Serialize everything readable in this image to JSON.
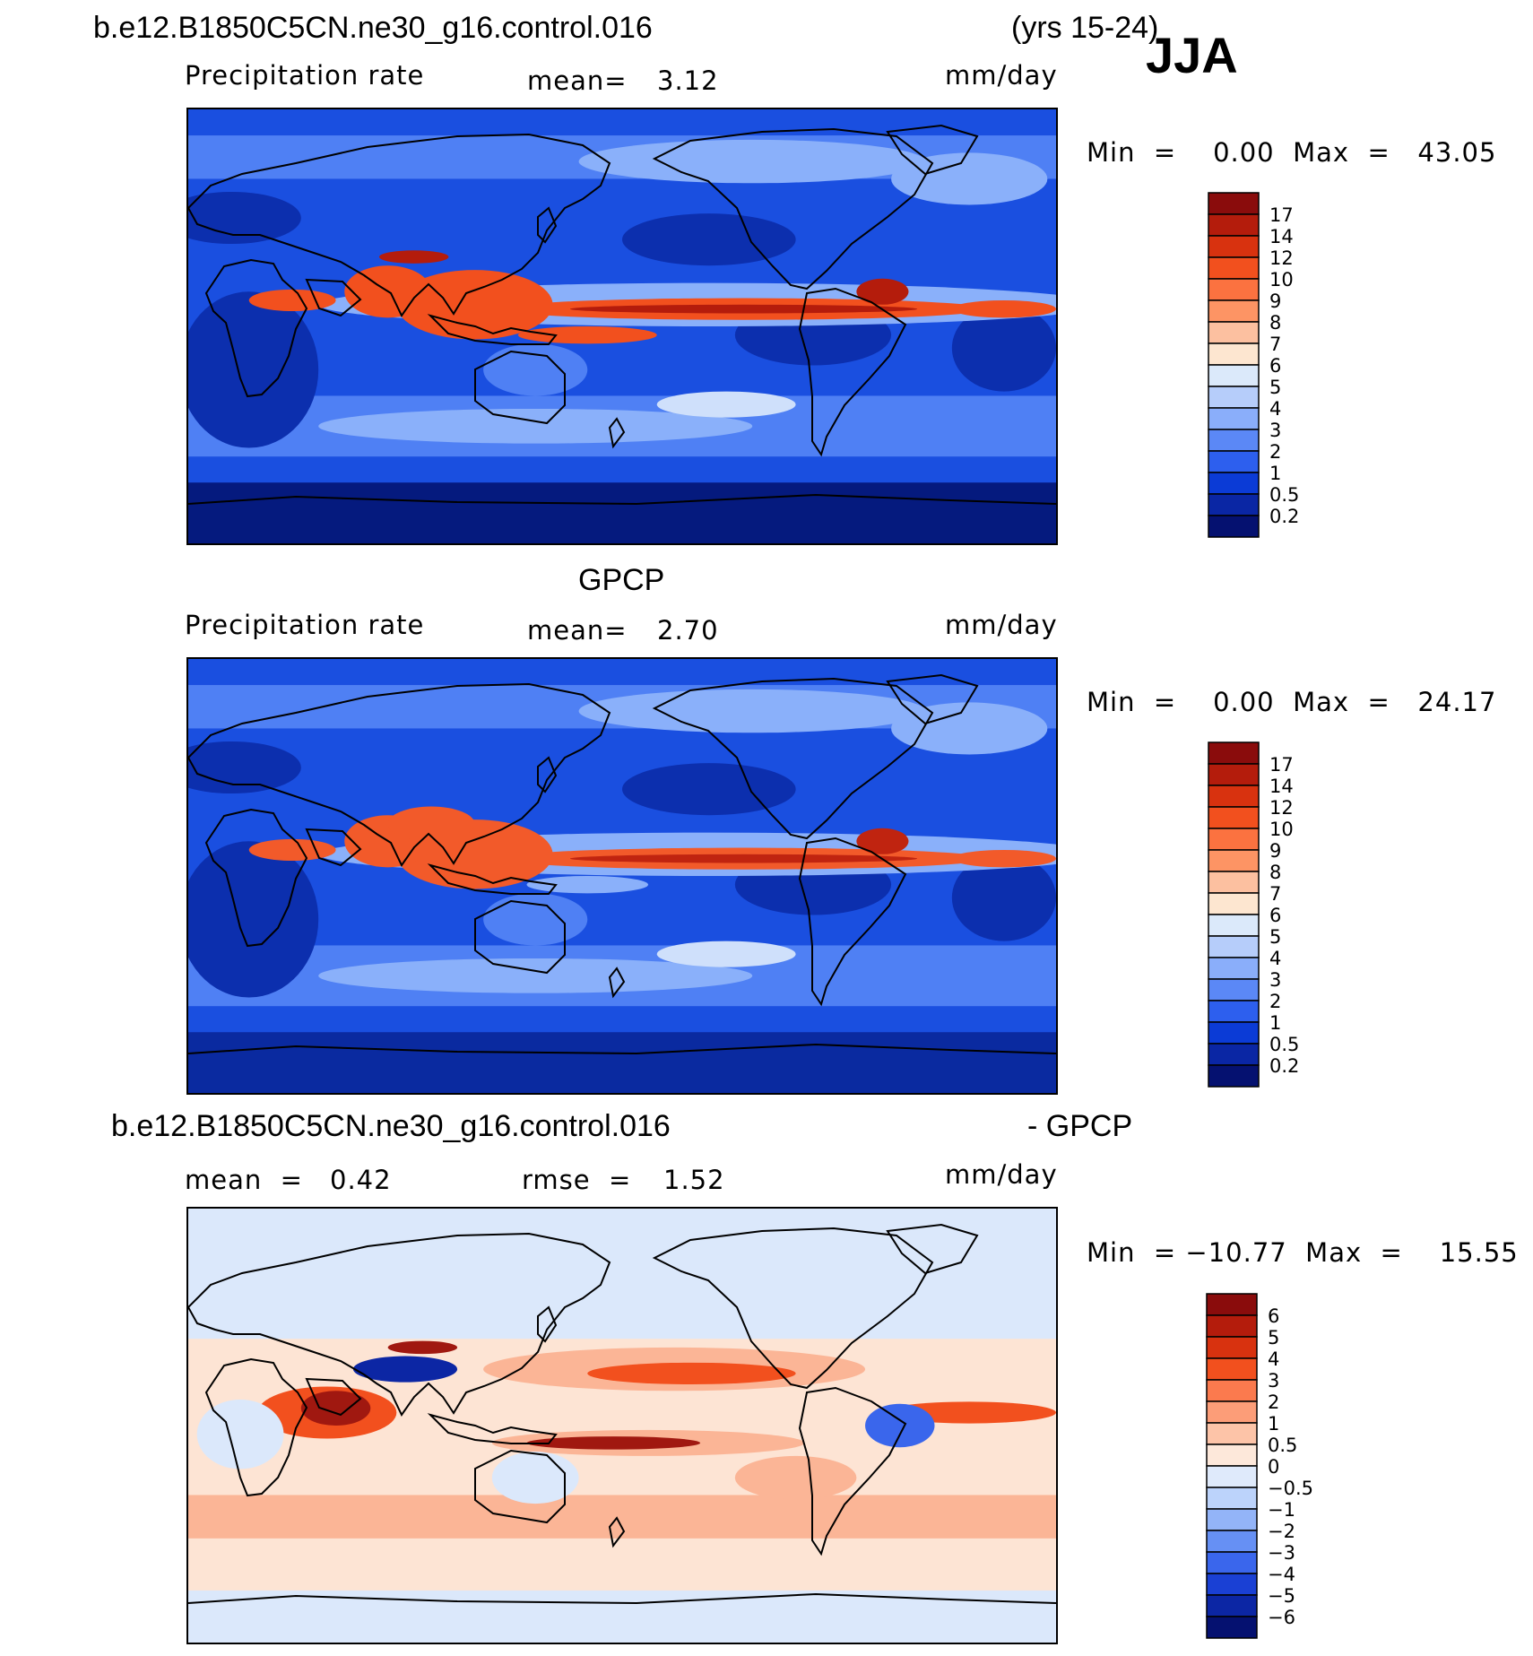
{
  "header": {
    "case": "b.e12.B1850C5CN.ne30_g16.control.016",
    "years": "(yrs 15-24)",
    "season": "JJA"
  },
  "panels": [
    {
      "id": "model",
      "subtitle": "",
      "variable": "Precipitation rate",
      "mean_label": "mean=",
      "mean_value": "3.12",
      "units": "mm/day",
      "minmax": "Min  =    0.00  Max  =   43.05",
      "colorbar": {
        "labels": [
          "17",
          "14",
          "12",
          "10",
          "9",
          "8",
          "7",
          "6",
          "5",
          "4",
          "3",
          "2",
          "1",
          "0.5",
          "0.2"
        ],
        "colors": [
          "#8a0c0c",
          "#b41c0c",
          "#d8320f",
          "#f2501e",
          "#fb7240",
          "#fd9464",
          "#fcc0a0",
          "#fde6d0",
          "#dbe9fa",
          "#b6cdfa",
          "#8aaefa",
          "#5b88f6",
          "#2d5fee",
          "#0b3bd6",
          "#0a26a4",
          "#051170"
        ]
      },
      "map_colors": {
        "ocean": "#1a4fe0",
        "dry": "#0c2fae",
        "polar": "#051a7e",
        "mid": "#4f80f4",
        "wet": "#8ab0fa",
        "itcz": "#f2501e",
        "core": "#b41c0c",
        "light": "#cfe0fb"
      }
    },
    {
      "id": "obs",
      "subtitle": "GPCP",
      "variable": "Precipitation rate",
      "mean_label": "mean=",
      "mean_value": "2.70",
      "units": "mm/day",
      "minmax": "Min  =    0.00  Max  =   24.17",
      "colorbar": {
        "labels": [
          "17",
          "14",
          "12",
          "10",
          "9",
          "8",
          "7",
          "6",
          "5",
          "4",
          "3",
          "2",
          "1",
          "0.5",
          "0.2"
        ],
        "colors": [
          "#8a0c0c",
          "#b41c0c",
          "#d8320f",
          "#f2501e",
          "#fb7240",
          "#fd9464",
          "#fcc0a0",
          "#fde6d0",
          "#dbe9fa",
          "#b6cdfa",
          "#8aaefa",
          "#5b88f6",
          "#2d5fee",
          "#0b3bd6",
          "#0a26a4",
          "#051170"
        ]
      },
      "map_colors": {
        "ocean": "#1a4fe0",
        "dry": "#0c2fae",
        "polar": "#0a2aa0",
        "mid": "#4f80f4",
        "wet": "#8ab0fa",
        "itcz": "#f25a2a",
        "core": "#c02410",
        "light": "#cfe0fb"
      }
    },
    {
      "id": "diff",
      "title_case": "b.e12.B1850C5CN.ne30_g16.control.016",
      "title_suffix": "- GPCP",
      "mean_label": "mean  =",
      "mean_value": "0.42",
      "rmse_label": "rmse  =",
      "rmse_value": "1.52",
      "units": "mm/day",
      "minmax": "Min  = −10.77  Max  =    15.55",
      "colorbar": {
        "labels": [
          "6",
          "5",
          "4",
          "3",
          "2",
          "1",
          "0.5",
          "0",
          "−0.5",
          "−1",
          "−2",
          "−3",
          "−4",
          "−5",
          "−6"
        ],
        "colors": [
          "#8a0c0c",
          "#b41c0c",
          "#d8320f",
          "#f2501e",
          "#fb7a4e",
          "#fc9d78",
          "#fdc4a8",
          "#fde8da",
          "#dfeafb",
          "#bcd3fb",
          "#93b4f8",
          "#6690f4",
          "#3a66ec",
          "#1a40d4",
          "#0c26a4",
          "#051170"
        ]
      },
      "map_colors": {
        "ocean": "#fde4d4",
        "cool": "#dbe8fb",
        "warm": "#fbb596",
        "hot": "#f2501e",
        "core": "#a01810",
        "blue": "#3a66ec",
        "dblue": "#0c26a4"
      }
    }
  ],
  "chart_data": {
    "type": "contour-map",
    "season": "JJA",
    "units": "mm/day",
    "panels": [
      {
        "name": "b.e12.B1850C5CN.ne30_g16.control.016 (yrs 15-24)",
        "variable": "Precipitation rate",
        "mean": 3.12,
        "min": 0.0,
        "max": 43.05,
        "contour_levels": [
          0.2,
          0.5,
          1,
          2,
          3,
          4,
          5,
          6,
          7,
          8,
          9,
          10,
          12,
          14,
          17
        ]
      },
      {
        "name": "GPCP",
        "variable": "Precipitation rate",
        "mean": 2.7,
        "min": 0.0,
        "max": 24.17,
        "contour_levels": [
          0.2,
          0.5,
          1,
          2,
          3,
          4,
          5,
          6,
          7,
          8,
          9,
          10,
          12,
          14,
          17
        ]
      },
      {
        "name": "b.e12.B1850C5CN.ne30_g16.control.016 - GPCP",
        "mean": 0.42,
        "rmse": 1.52,
        "min": -10.77,
        "max": 15.55,
        "contour_levels": [
          -6,
          -5,
          -4,
          -3,
          -2,
          -1,
          -0.5,
          0,
          0.5,
          1,
          2,
          3,
          4,
          5,
          6
        ]
      }
    ]
  }
}
